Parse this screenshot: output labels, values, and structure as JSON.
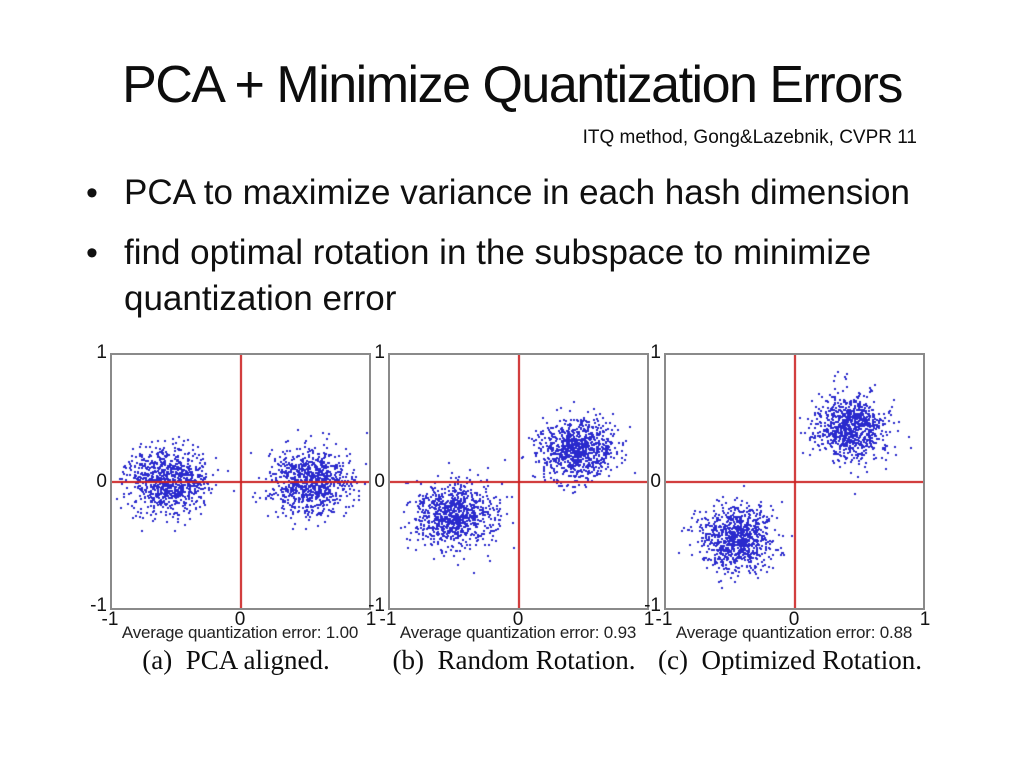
{
  "slide": {
    "title": "PCA + Minimize Quantization Errors",
    "subtitle": "ITQ method, Gong&Lazebnik, CVPR 11",
    "bullets": [
      "PCA to maximize variance in each hash dimension",
      "find optimal rotation in the subspace to minimize quantization error"
    ]
  },
  "chart_data": [
    {
      "type": "scatter",
      "label": "(a)  PCA aligned.",
      "caption": "Average quantization error: 1.00",
      "xlim": [
        -1,
        1
      ],
      "ylim": [
        -1,
        1
      ],
      "xticks": [
        "-1",
        "0",
        "1"
      ],
      "yticks": [
        "1",
        "0",
        "-1"
      ],
      "grid": false,
      "crosshair": {
        "x": 0,
        "y": 0
      },
      "clusters": [
        {
          "cx": -0.55,
          "cy": 0.0,
          "sigma_x": 0.155,
          "sigma_y": 0.13,
          "n": 850,
          "seed": 101
        },
        {
          "cx": 0.55,
          "cy": 0.0,
          "sigma_x": 0.155,
          "sigma_y": 0.13,
          "n": 850,
          "seed": 202
        }
      ]
    },
    {
      "type": "scatter",
      "label": "(b)  Random Rotation.",
      "caption": "Average quantization error: 0.93",
      "xlim": [
        -1,
        1
      ],
      "ylim": [
        -1,
        1
      ],
      "xticks": [
        "-1",
        "0",
        "1"
      ],
      "yticks": [
        "1",
        "0",
        "-1"
      ],
      "grid": false,
      "crosshair": {
        "x": 0,
        "y": 0
      },
      "clusters": [
        {
          "cx": -0.5,
          "cy": -0.26,
          "sigma_x": 0.15,
          "sigma_y": 0.13,
          "n": 850,
          "seed": 303
        },
        {
          "cx": 0.46,
          "cy": 0.25,
          "sigma_x": 0.15,
          "sigma_y": 0.125,
          "n": 850,
          "seed": 404
        }
      ]
    },
    {
      "type": "scatter",
      "label": "(c)  Optimized Rotation.",
      "caption": "Average quantization error: 0.88",
      "xlim": [
        -1,
        1
      ],
      "ylim": [
        -1,
        1
      ],
      "xticks": [
        "-1",
        "0",
        "1"
      ],
      "yticks": [
        "1",
        "0",
        "-1"
      ],
      "grid": false,
      "crosshair": {
        "x": 0,
        "y": 0
      },
      "clusters": [
        {
          "cx": -0.45,
          "cy": -0.44,
          "sigma_x": 0.145,
          "sigma_y": 0.13,
          "n": 850,
          "seed": 505
        },
        {
          "cx": 0.44,
          "cy": 0.42,
          "sigma_x": 0.14,
          "sigma_y": 0.128,
          "n": 850,
          "seed": 606
        }
      ]
    }
  ],
  "style": {
    "point_color": "#2a2acd",
    "crosshair_color": "#cc2222",
    "plot_border_color": "#8a8a8a",
    "text_color": "#111111",
    "background": "#ffffff"
  }
}
